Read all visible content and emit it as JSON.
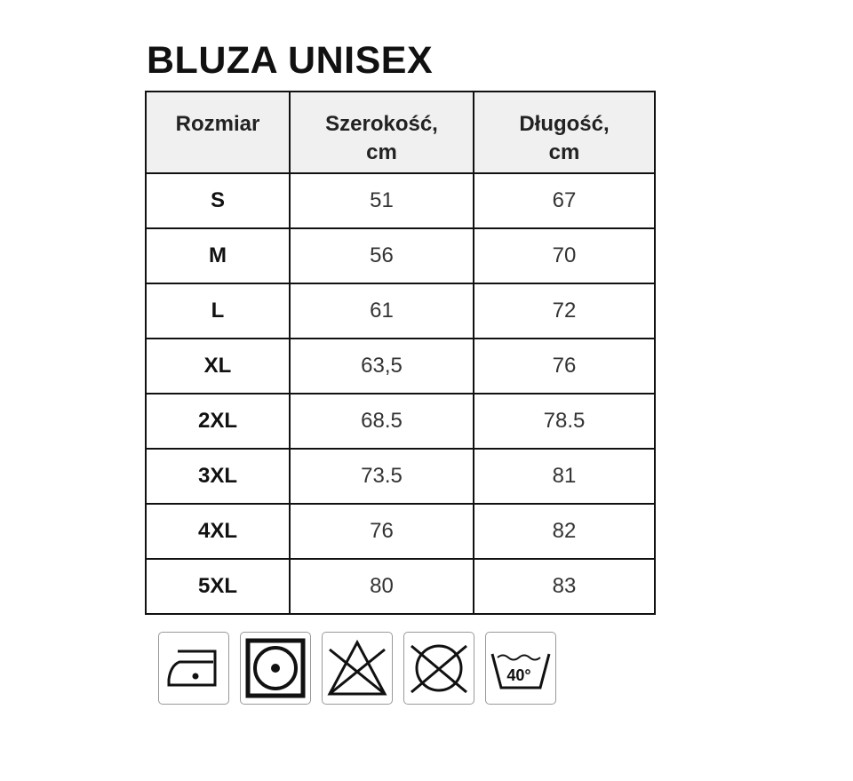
{
  "title": "BLUZA UNISEX",
  "table": {
    "header_lines": [
      [
        "Rozmiar",
        ""
      ],
      [
        "Szerokość,",
        "cm"
      ],
      [
        "Długość,",
        "cm"
      ]
    ],
    "rows": [
      [
        "S",
        "51",
        "67"
      ],
      [
        "M",
        "56",
        "70"
      ],
      [
        "L",
        "61",
        "72"
      ],
      [
        "XL",
        "63,5",
        "76"
      ],
      [
        "2XL",
        "68.5",
        "78.5"
      ],
      [
        "3XL",
        "73.5",
        "81"
      ],
      [
        "4XL",
        "76",
        "82"
      ],
      [
        "5XL",
        "80",
        "83"
      ]
    ]
  },
  "care_icons": [
    {
      "icon": "iron-low-temp-icon"
    },
    {
      "icon": "tumble-dry-low-icon"
    },
    {
      "icon": "do-not-bleach-icon"
    },
    {
      "icon": "do-not-dry-clean-icon"
    },
    {
      "icon": "wash-40-icon",
      "label": "40°"
    }
  ]
}
